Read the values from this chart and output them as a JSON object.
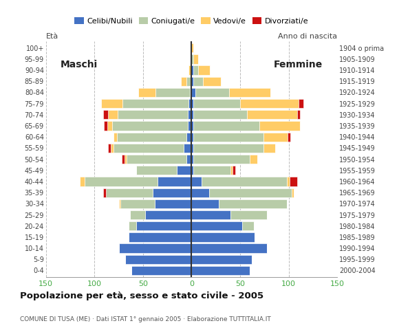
{
  "age_groups": [
    "0-4",
    "5-9",
    "10-14",
    "15-19",
    "20-24",
    "25-29",
    "30-34",
    "35-39",
    "40-44",
    "45-49",
    "50-54",
    "55-59",
    "60-64",
    "65-69",
    "70-74",
    "75-79",
    "80-84",
    "85-89",
    "90-94",
    "95-99",
    "100+"
  ],
  "birth_years": [
    "2000-2004",
    "1995-1999",
    "1990-1994",
    "1985-1989",
    "1980-1984",
    "1975-1979",
    "1970-1974",
    "1965-1969",
    "1960-1964",
    "1955-1959",
    "1950-1954",
    "1945-1949",
    "1940-1944",
    "1935-1939",
    "1930-1934",
    "1925-1929",
    "1920-1924",
    "1915-1919",
    "1910-1914",
    "1905-1909",
    "1904 o prima"
  ],
  "colors": {
    "celibe": "#4472C4",
    "coniugato": "#B8CCA8",
    "vedovo": "#FFCC66",
    "divorziato": "#CC1111"
  },
  "males": {
    "celibe": [
      62,
      68,
      75,
      65,
      57,
      48,
      38,
      40,
      35,
      15,
      5,
      8,
      5,
      4,
      4,
      3,
      2,
      0,
      0,
      0,
      0
    ],
    "coniugato": [
      0,
      0,
      0,
      0,
      8,
      15,
      35,
      48,
      75,
      42,
      62,
      72,
      72,
      78,
      72,
      68,
      35,
      5,
      0,
      0,
      0
    ],
    "vedovo": [
      0,
      0,
      0,
      0,
      0,
      0,
      2,
      0,
      5,
      0,
      2,
      3,
      3,
      5,
      10,
      22,
      18,
      6,
      3,
      0,
      0
    ],
    "divorziato": [
      0,
      0,
      0,
      0,
      0,
      0,
      0,
      3,
      0,
      0,
      3,
      3,
      0,
      3,
      5,
      0,
      0,
      0,
      0,
      0,
      0
    ]
  },
  "females": {
    "celibe": [
      60,
      62,
      78,
      65,
      52,
      40,
      28,
      18,
      10,
      2,
      2,
      2,
      2,
      2,
      2,
      2,
      4,
      2,
      2,
      0,
      0
    ],
    "coniugato": [
      0,
      0,
      0,
      0,
      12,
      38,
      70,
      85,
      88,
      38,
      58,
      72,
      72,
      68,
      55,
      48,
      35,
      10,
      5,
      2,
      0
    ],
    "vedovo": [
      0,
      0,
      0,
      0,
      0,
      0,
      0,
      2,
      3,
      2,
      8,
      12,
      25,
      42,
      52,
      60,
      42,
      18,
      12,
      5,
      2
    ],
    "divorziato": [
      0,
      0,
      0,
      0,
      0,
      0,
      0,
      0,
      8,
      3,
      0,
      0,
      3,
      0,
      3,
      5,
      0,
      0,
      0,
      0,
      0
    ]
  },
  "xlim": 150,
  "title": "Popolazione per eta, sesso e stato civile - 2005",
  "subtitle": "COMUNE DI TUSA (ME) · Dati ISTAT 1° gennaio 2005 · Elaborazione TUTTITALIA.IT",
  "legend_labels": [
    "Celibi/Nubili",
    "Coniugati/e",
    "Vedovi/e",
    "Divorziati/e"
  ],
  "xticks": [
    -150,
    -100,
    -50,
    0,
    50,
    100,
    150
  ],
  "xtick_labels": [
    "150",
    "100",
    "50",
    "0",
    "50",
    "100",
    "150"
  ]
}
